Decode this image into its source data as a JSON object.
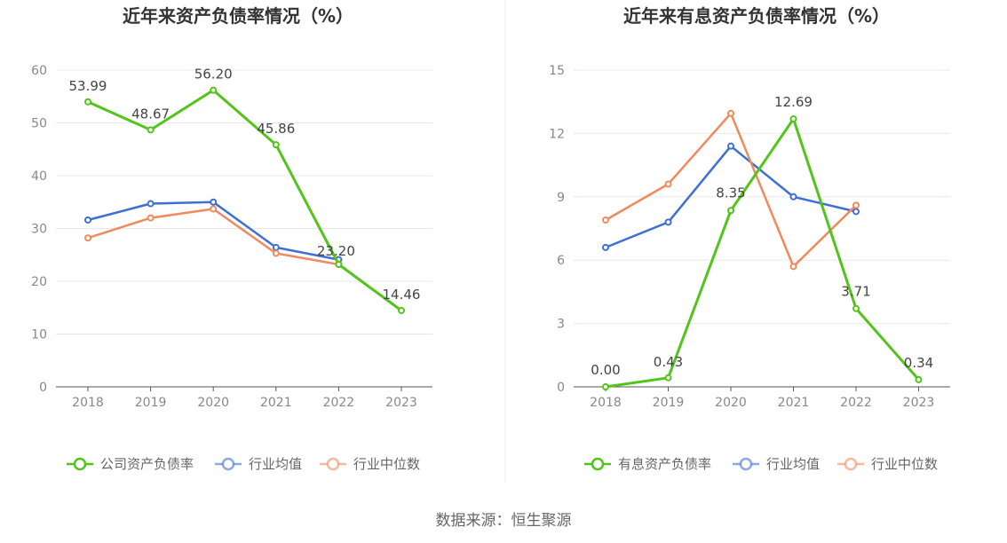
{
  "source_label": "数据来源：恒生聚源",
  "colors": {
    "primary": "#52c41a",
    "mean": "#3d6fd4",
    "median": "#f08a5d"
  },
  "chart_data": [
    {
      "type": "line",
      "title": "近年来资产负债率情况（%）",
      "categories": [
        "2018",
        "2019",
        "2020",
        "2021",
        "2022",
        "2023"
      ],
      "ylim": [
        0,
        60
      ],
      "yticks": [
        0,
        10,
        20,
        30,
        40,
        50,
        60
      ],
      "grid": true,
      "legend_position": "bottom",
      "series": [
        {
          "name": "公司资产负债率",
          "role": "primary",
          "values": [
            53.99,
            48.67,
            56.2,
            45.86,
            23.2,
            14.46
          ],
          "labels": [
            "53.99",
            "48.67",
            "56.20",
            "45.86",
            "23.20",
            "14.46"
          ]
        },
        {
          "name": "行业均值",
          "role": "mean",
          "values": [
            31.6,
            34.7,
            35.0,
            26.4,
            24.1,
            null
          ]
        },
        {
          "name": "行业中位数",
          "role": "median",
          "values": [
            28.2,
            32.0,
            33.7,
            25.3,
            23.2,
            null
          ]
        }
      ]
    },
    {
      "type": "line",
      "title": "近年来有息资产负债率情况（%）",
      "categories": [
        "2018",
        "2019",
        "2020",
        "2021",
        "2022",
        "2023"
      ],
      "ylim": [
        0,
        15
      ],
      "yticks": [
        0,
        3,
        6,
        9,
        12,
        15
      ],
      "grid": true,
      "legend_position": "bottom",
      "series": [
        {
          "name": "有息资产负债率",
          "role": "primary",
          "values": [
            0.0,
            0.43,
            8.35,
            12.69,
            3.71,
            0.34
          ],
          "labels": [
            "0.00",
            "0.43",
            "8.35",
            "12.69",
            "3.71",
            "0.34"
          ]
        },
        {
          "name": "行业均值",
          "role": "mean",
          "values": [
            6.6,
            7.8,
            11.4,
            9.0,
            8.3,
            null
          ]
        },
        {
          "name": "行业中位数",
          "role": "median",
          "values": [
            7.9,
            9.6,
            12.95,
            5.7,
            8.6,
            null
          ]
        }
      ]
    }
  ]
}
